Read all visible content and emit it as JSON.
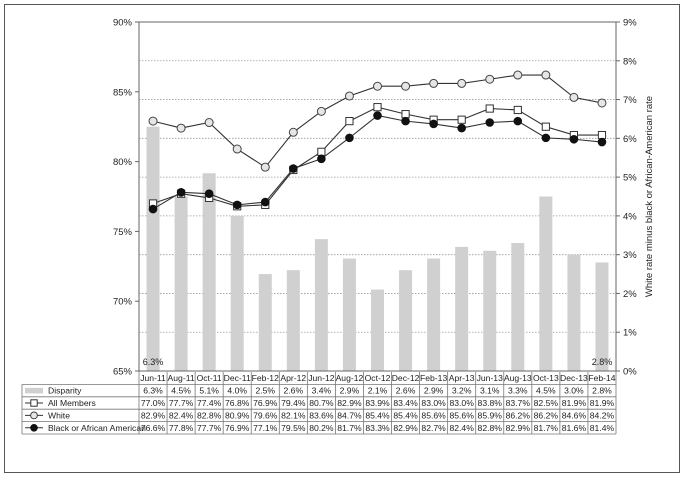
{
  "chart_data": {
    "type": "bar-line combo",
    "categories": [
      "Jun-11",
      "Aug-11",
      "Oct-11",
      "Dec-11",
      "Feb-12",
      "Apr-12",
      "Jun-12",
      "Aug-12",
      "Oct-12",
      "Dec-12",
      "Feb-13",
      "Apr-13",
      "Jun-13",
      "Aug-13",
      "Oct-13",
      "Dec-13",
      "Feb-14"
    ],
    "left_axis": {
      "ylim": [
        65,
        90
      ],
      "ticks": [
        "65%",
        "70%",
        "75%",
        "80%",
        "85%",
        "90%"
      ],
      "tick_values": [
        65,
        70,
        75,
        80,
        85,
        90
      ]
    },
    "right_axis": {
      "label": "White rate minus black or African-American rate",
      "ylim": [
        0,
        9
      ],
      "ticks": [
        "0%",
        "1%",
        "2%",
        "3%",
        "4%",
        "5%",
        "6%",
        "7%",
        "8%",
        "9%"
      ],
      "tick_values": [
        0,
        1,
        2,
        3,
        4,
        5,
        6,
        7,
        8,
        9
      ]
    },
    "grid": true,
    "bar_series": {
      "name": "Disparity",
      "color": "#d0d0d0",
      "values": [
        6.3,
        4.5,
        5.1,
        4.0,
        2.5,
        2.6,
        3.4,
        2.9,
        2.1,
        2.6,
        2.9,
        3.2,
        3.1,
        3.3,
        4.5,
        3.0,
        2.8
      ],
      "labels": [
        "6.3%",
        "4.5%",
        "5.1%",
        "4.0%",
        "2.5%",
        "2.6%",
        "3.4%",
        "2.9%",
        "2.1%",
        "2.6%",
        "2.9%",
        "3.2%",
        "3.1%",
        "3.3%",
        "4.5%",
        "3.0%",
        "2.8%"
      ],
      "end_labels": [
        "6.3%",
        "2.8%"
      ]
    },
    "series": [
      {
        "name": "All Members",
        "marker": "square-open",
        "values": [
          77.0,
          77.7,
          77.4,
          76.8,
          76.9,
          79.4,
          80.7,
          82.9,
          83.9,
          83.4,
          83.0,
          83.0,
          83.8,
          83.7,
          82.5,
          81.9,
          81.9
        ],
        "labels": [
          "77.0%",
          "77.7%",
          "77.4%",
          "76.8%",
          "76.9%",
          "79.4%",
          "80.7%",
          "82.9%",
          "83.9%",
          "83.4%",
          "83.0%",
          "83.0%",
          "83.8%",
          "83.7%",
          "82.5%",
          "81.9%",
          "81.9%"
        ]
      },
      {
        "name": "White",
        "marker": "circle-open",
        "values": [
          82.9,
          82.4,
          82.8,
          80.9,
          79.6,
          82.1,
          83.6,
          84.7,
          85.4,
          85.4,
          85.6,
          85.6,
          85.9,
          86.2,
          86.2,
          84.6,
          84.2
        ],
        "labels": [
          "82.9%",
          "82.4%",
          "82.8%",
          "80.9%",
          "79.6%",
          "82.1%",
          "83.6%",
          "84.7%",
          "85.4%",
          "85.4%",
          "85.6%",
          "85.6%",
          "85.9%",
          "86.2%",
          "86.2%",
          "84.6%",
          "84.2%"
        ]
      },
      {
        "name": "Black or African American",
        "marker": "circle-filled",
        "values": [
          76.6,
          77.8,
          77.7,
          76.9,
          77.1,
          79.5,
          80.2,
          81.7,
          83.3,
          82.9,
          82.7,
          82.4,
          82.8,
          82.9,
          81.7,
          81.6,
          81.4
        ],
        "labels": [
          "76.6%",
          "77.8%",
          "77.7%",
          "76.9%",
          "77.1%",
          "79.5%",
          "80.2%",
          "81.7%",
          "83.3%",
          "82.9%",
          "82.7%",
          "82.4%",
          "82.8%",
          "82.9%",
          "81.7%",
          "81.6%",
          "81.4%"
        ]
      }
    ]
  }
}
